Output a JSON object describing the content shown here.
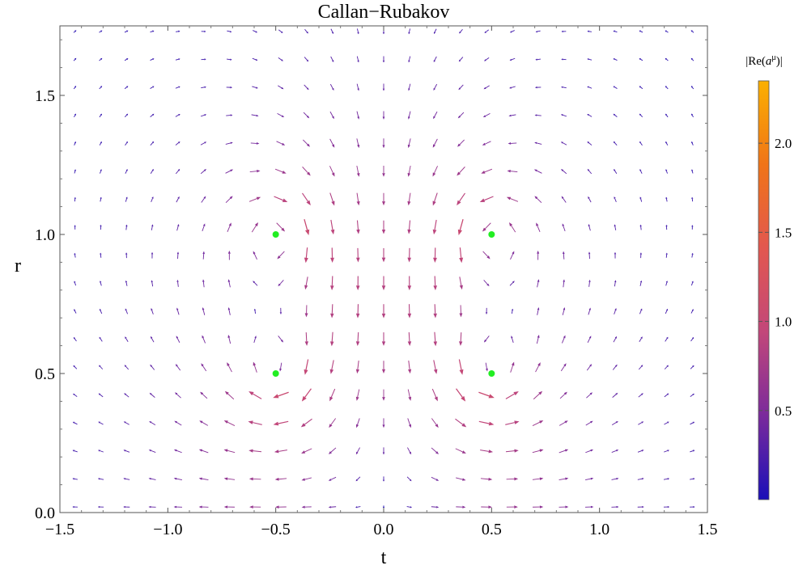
{
  "chart_data": {
    "type": "vector-field",
    "title": "Callan−Rubakov",
    "xlabel": "t",
    "ylabel": "r",
    "xlim": [
      -1.5,
      1.5
    ],
    "ylim": [
      0.0,
      1.75
    ],
    "x_ticks": [
      -1.5,
      -1.0,
      -0.5,
      0.0,
      0.5,
      1.0,
      1.5
    ],
    "x_tick_labels": [
      "−1.5",
      "−1.0",
      "−0.5",
      "0.0",
      "0.5",
      "1.0",
      "1.5"
    ],
    "y_ticks": [
      0.0,
      0.5,
      1.0,
      1.5
    ],
    "y_tick_labels": [
      "0.0",
      "0.5",
      "1.0",
      "1.5"
    ],
    "grid": false,
    "field": {
      "description": "vector field of Re(a^mu) over (t, r)",
      "grid_t_range": [
        -1.43,
        1.43
      ],
      "grid_r_range": [
        0.02,
        1.73
      ],
      "grid_cols": 25,
      "grid_rows": 18
    },
    "points": [
      {
        "t": -0.5,
        "r": 0.5
      },
      {
        "t": 0.5,
        "r": 0.5
      },
      {
        "t": -0.5,
        "r": 1.0
      },
      {
        "t": 0.5,
        "r": 1.0
      }
    ],
    "point_color": "#22ee22",
    "colorbar": {
      "title": "|Re(aμ)|",
      "title_base": "|Re(",
      "title_var": "a",
      "title_sup": "μ",
      "title_end": ")|",
      "range": [
        0.0,
        2.35
      ],
      "ticks": [
        0.5,
        1.0,
        1.5,
        2.0
      ],
      "tick_labels": [
        "0.5",
        "1.0",
        "1.5",
        "2.0"
      ],
      "colors": [
        "#1a0fb8",
        "#7a2a9c",
        "#c2477a",
        "#e2574f",
        "#f07418",
        "#fbb000"
      ]
    }
  }
}
